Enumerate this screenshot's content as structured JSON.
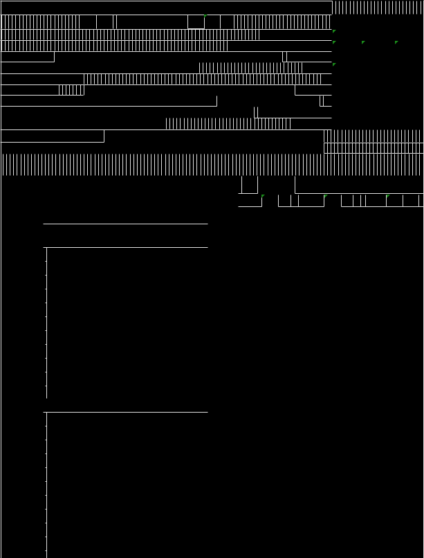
{
  "colors": {
    "background": "#000000",
    "gridline": "#e0e0e0",
    "error_indicator": "#1a8a1a"
  },
  "icons": [
    "error-indicator-triangle"
  ]
}
